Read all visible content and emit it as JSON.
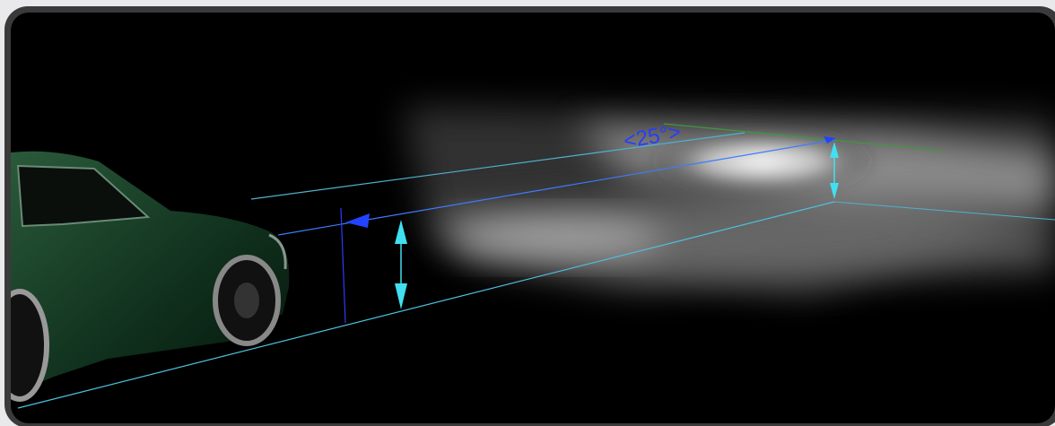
{
  "annotation": "<25°>"
}
